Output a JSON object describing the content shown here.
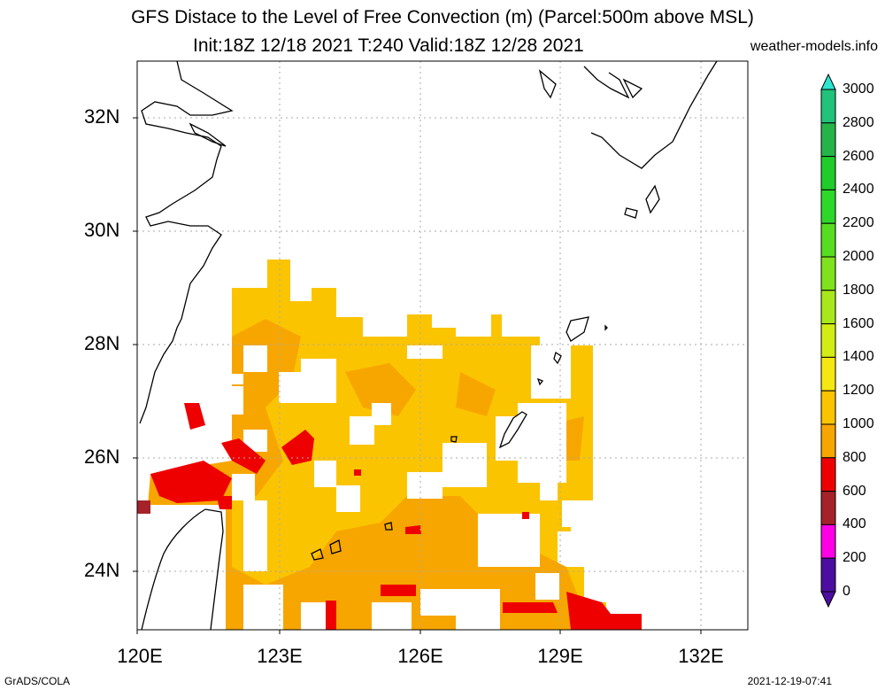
{
  "title": {
    "line1": "GFS Distace to the Level of Free Convection (m) (Parcel:500m above MSL)",
    "line2": "Init:18Z 12/18 2021 T:240 Valid:18Z 12/28 2021",
    "site": "weather-models.info"
  },
  "axes": {
    "lat_labels": [
      "32N",
      "30N",
      "28N",
      "26N",
      "24N"
    ],
    "lon_labels": [
      "120E",
      "123E",
      "126E",
      "129E",
      "132E"
    ]
  },
  "colorbar": {
    "labels": [
      "3000",
      "2800",
      "2600",
      "2400",
      "2200",
      "2000",
      "1800",
      "1600",
      "1400",
      "1200",
      "1000",
      "800",
      "600",
      "400",
      "200",
      "0"
    ],
    "colors": [
      "#2ee5d0",
      "#22c27a",
      "#26b34a",
      "#1fcc2a",
      "#2ed82a",
      "#56dd1f",
      "#7fe21c",
      "#a8e81a",
      "#d2ec16",
      "#f5e712",
      "#fbc400",
      "#f7a600",
      "#ee0000",
      "#a5222a",
      "#ff00e6",
      "#4b0ea0"
    ]
  },
  "footer": {
    "left": "GrADS/COLA",
    "right": "2021-12-19-07:41"
  },
  "colors": {
    "low": "#ee0000",
    "mid": "#f7a600",
    "high": "#fbc400",
    "coast": "#000000"
  }
}
